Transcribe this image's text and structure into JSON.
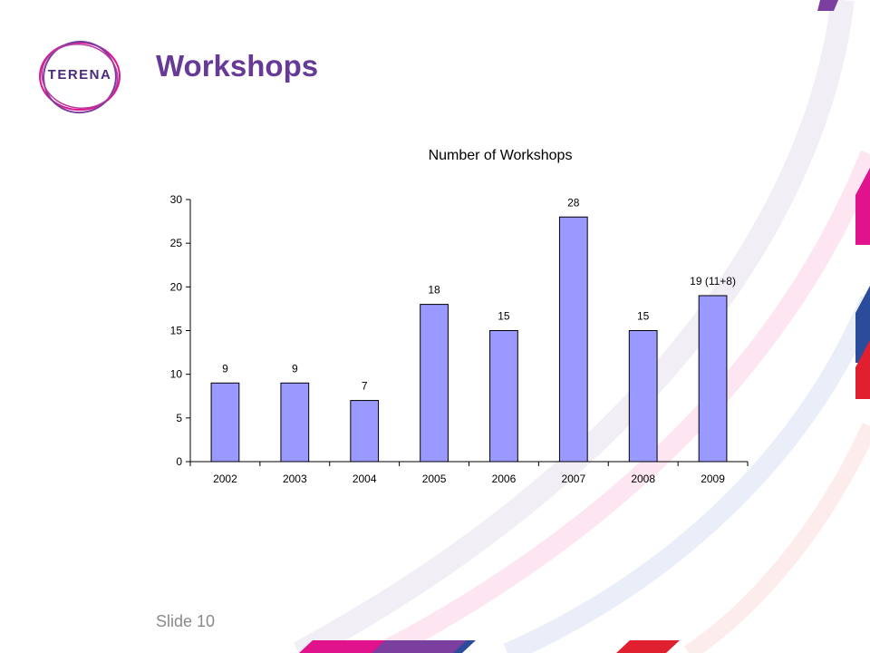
{
  "slide": {
    "title": "Workshops",
    "footer": "Slide 10",
    "logo_text": "TERENA"
  },
  "chart_data": {
    "type": "bar",
    "title": "Number of Workshops",
    "categories": [
      "2002",
      "2003",
      "2004",
      "2005",
      "2006",
      "2007",
      "2008",
      "2009"
    ],
    "values": [
      9,
      9,
      7,
      18,
      15,
      28,
      15,
      19
    ],
    "data_labels": [
      "9",
      "9",
      "7",
      "18",
      "15",
      "28",
      "15",
      "19 (11+8)"
    ],
    "xlabel": "",
    "ylabel": "",
    "ylim": [
      0,
      30
    ],
    "yticks": [
      0,
      5,
      10,
      15,
      20,
      25,
      30
    ],
    "bar_color": "#9999ff",
    "bar_outline": "#000000",
    "grid": false,
    "legend": false
  },
  "colors": {
    "title": "#663a96",
    "accent_magenta": "#e0138c",
    "accent_purple": "#7b3fa0",
    "accent_blue": "#2b4c9b",
    "accent_red": "#e0202e"
  }
}
